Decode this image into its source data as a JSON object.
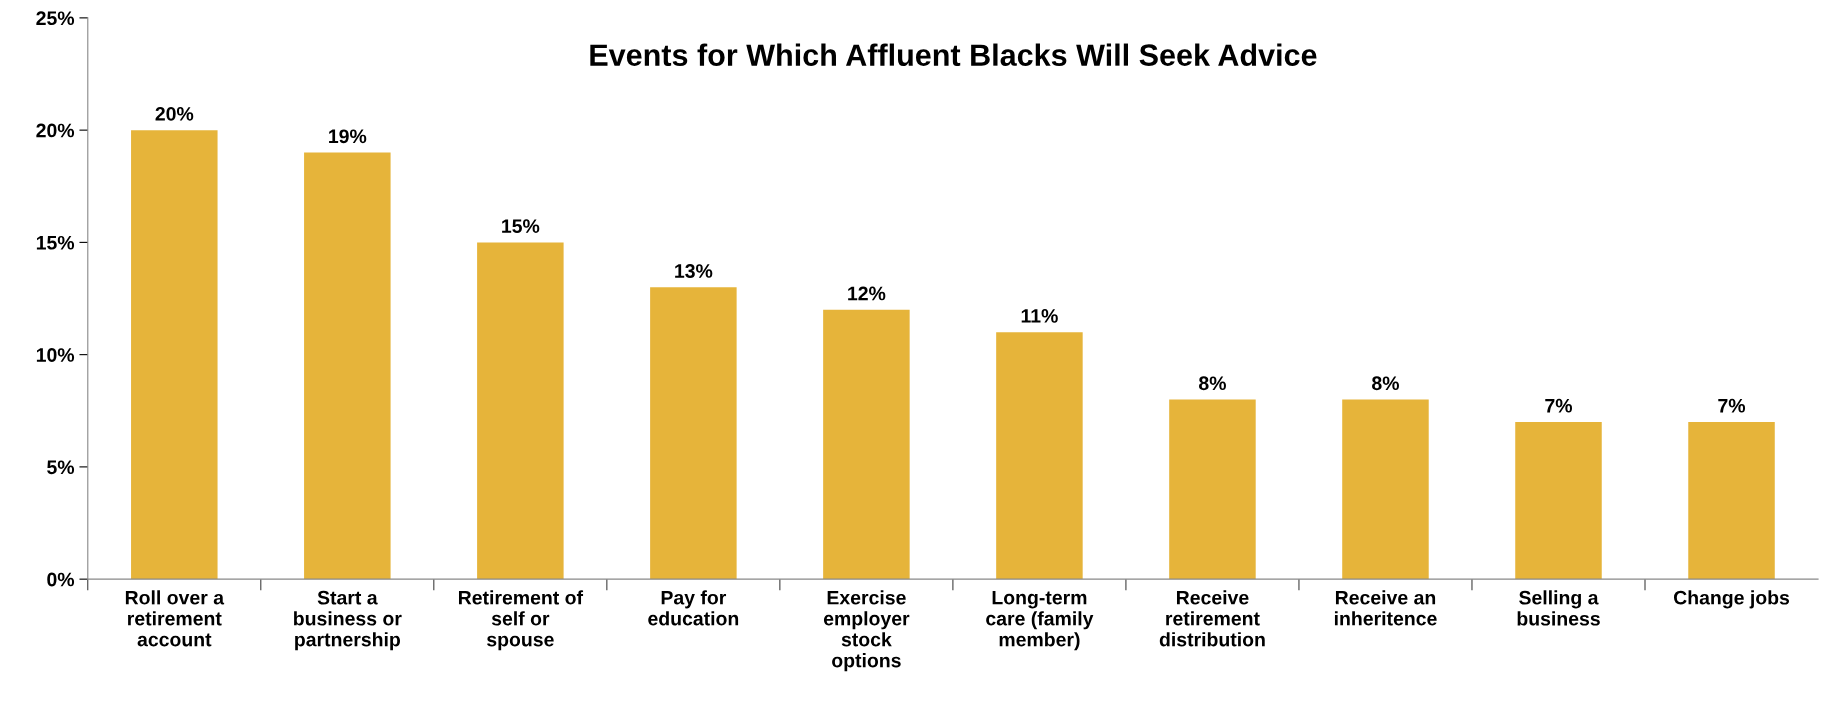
{
  "chart_data": {
    "type": "bar",
    "title": "Events for Which Affluent Blacks Will Seek Advice",
    "categories": [
      "Roll over a\nretirement\naccount",
      "Start a\nbusiness or\npartnership",
      "Retirement of\nself or\nspouse",
      "Pay for\neducation",
      "Exercise\nemployer\nstock\noptions",
      "Long-term\ncare (family\nmember)",
      "Receive\nretirement\ndistribution",
      "Receive an\ninheritence",
      "Selling a\nbusiness",
      "Change jobs"
    ],
    "values": [
      20,
      19,
      15,
      13,
      12,
      11,
      8,
      8,
      7,
      7
    ],
    "value_labels": [
      "20%",
      "19%",
      "15%",
      "13%",
      "12%",
      "11%",
      "8%",
      "8%",
      "7%",
      "7%"
    ],
    "color": "#e6b43a",
    "ylim": [
      0,
      25
    ],
    "yticks": [
      {
        "value": 0,
        "label": "0%"
      },
      {
        "value": 5,
        "label": "5%"
      },
      {
        "value": 10,
        "label": "10%"
      },
      {
        "value": 15,
        "label": "15%"
      },
      {
        "value": 20,
        "label": "20%"
      },
      {
        "value": 25,
        "label": "25%"
      }
    ],
    "grid": false
  }
}
